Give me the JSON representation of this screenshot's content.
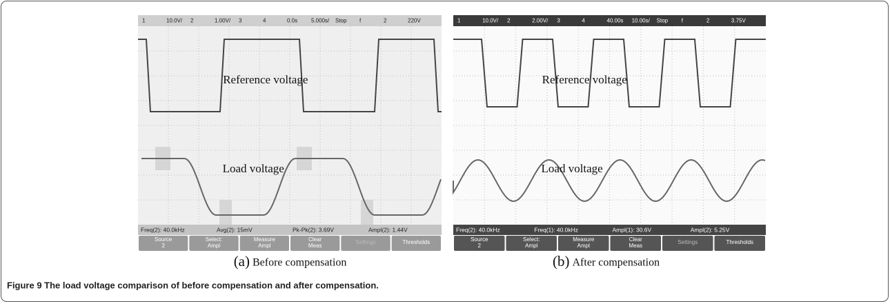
{
  "panels": [
    {
      "status_bar": [
        "1",
        "10.0V/",
        "2",
        "1.00V/",
        "3",
        "4",
        "0.0s",
        "5.000s/",
        "Stop",
        "f",
        "2",
        "220V"
      ],
      "reference_label": "Reference voltage",
      "load_label": "Load voltage",
      "measurements": [
        "Freq(2): 40.0kHz",
        "Avg(2): 15mV",
        "Pk-Pk(2): 3.69V",
        "Ampl(2): 1.44V"
      ],
      "softkeys": [
        [
          "Source",
          "2"
        ],
        [
          "Select:",
          "Ampl"
        ],
        [
          "Measure",
          "Ampl"
        ],
        [
          "Clear",
          "Meas"
        ],
        [
          "Settings"
        ],
        [
          "Thresholds"
        ]
      ],
      "caption_label": "(a)",
      "caption_text": "Before compensation"
    },
    {
      "status_bar": [
        "1",
        "10.0V/",
        "2",
        "2.00V/",
        "3",
        "4",
        "40.00s",
        "10.00s/",
        "Stop",
        "f",
        "2",
        "3.75V"
      ],
      "reference_label": "Reference voltage",
      "load_label": "Load voltage",
      "measurements": [
        "Freq(2): 40.0kHz",
        "Freq(1): 40.0kHz",
        "Ampl(1): 30.6V",
        "Ampl(2): 5.25V"
      ],
      "softkeys": [
        [
          "Source",
          "2"
        ],
        [
          "Select:",
          "Ampl"
        ],
        [
          "Measure",
          "Ampl"
        ],
        [
          "Clear",
          "Meas"
        ],
        [
          "Settings"
        ],
        [
          "Thresholds"
        ]
      ],
      "caption_label": "(b)",
      "caption_text": "After compensation"
    }
  ],
  "figure_caption": "Figure 9 The load voltage comparison of before compensation and after compensation."
}
